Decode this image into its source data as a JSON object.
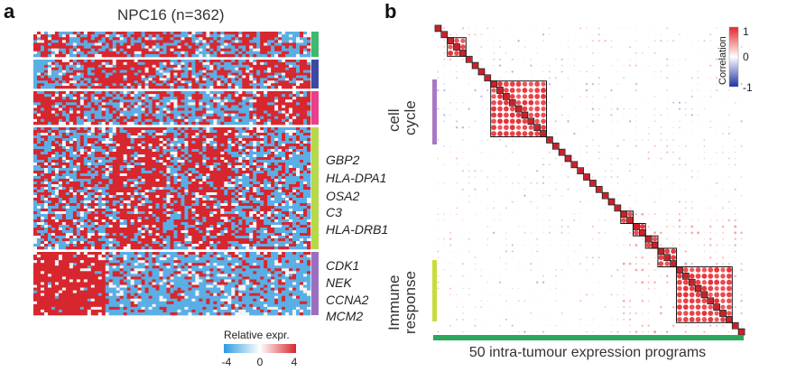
{
  "panel_a": {
    "letter": "a",
    "title": "NPC16 (n=362)",
    "gene_labels": [
      "GBP2",
      "HLA-DPA1",
      "OSA2",
      "C3",
      "HLA-DRB1",
      "CDK1",
      "NEK",
      "CCNA2",
      "MCM2"
    ],
    "cluster_colors": [
      "#3cba6e",
      "#3a4aa6",
      "#ea3f8a",
      "#b6d94a",
      "#9b6fc0"
    ],
    "legend": {
      "title": "Relative expr.",
      "ticks": [
        "-4",
        "0",
        "4"
      ],
      "low_color": "#2f9be0",
      "mid_color": "#ffffff",
      "high_color": "#d7262e"
    }
  },
  "panel_b": {
    "letter": "b",
    "colorbar": {
      "title": "Correlation",
      "ticks": [
        "1",
        "0",
        "-1"
      ],
      "high_color": "#e8242a",
      "low_color": "#2231a0"
    },
    "module_labels": [
      {
        "lines": [
          "cell",
          "cycle"
        ],
        "color": "#a978c4"
      },
      {
        "lines": [
          "Immune",
          "response"
        ],
        "color": "#c9dc3c"
      }
    ],
    "x_label": "50 intra-tumour expression programs",
    "x_bar_color": "#2aa85e"
  }
}
